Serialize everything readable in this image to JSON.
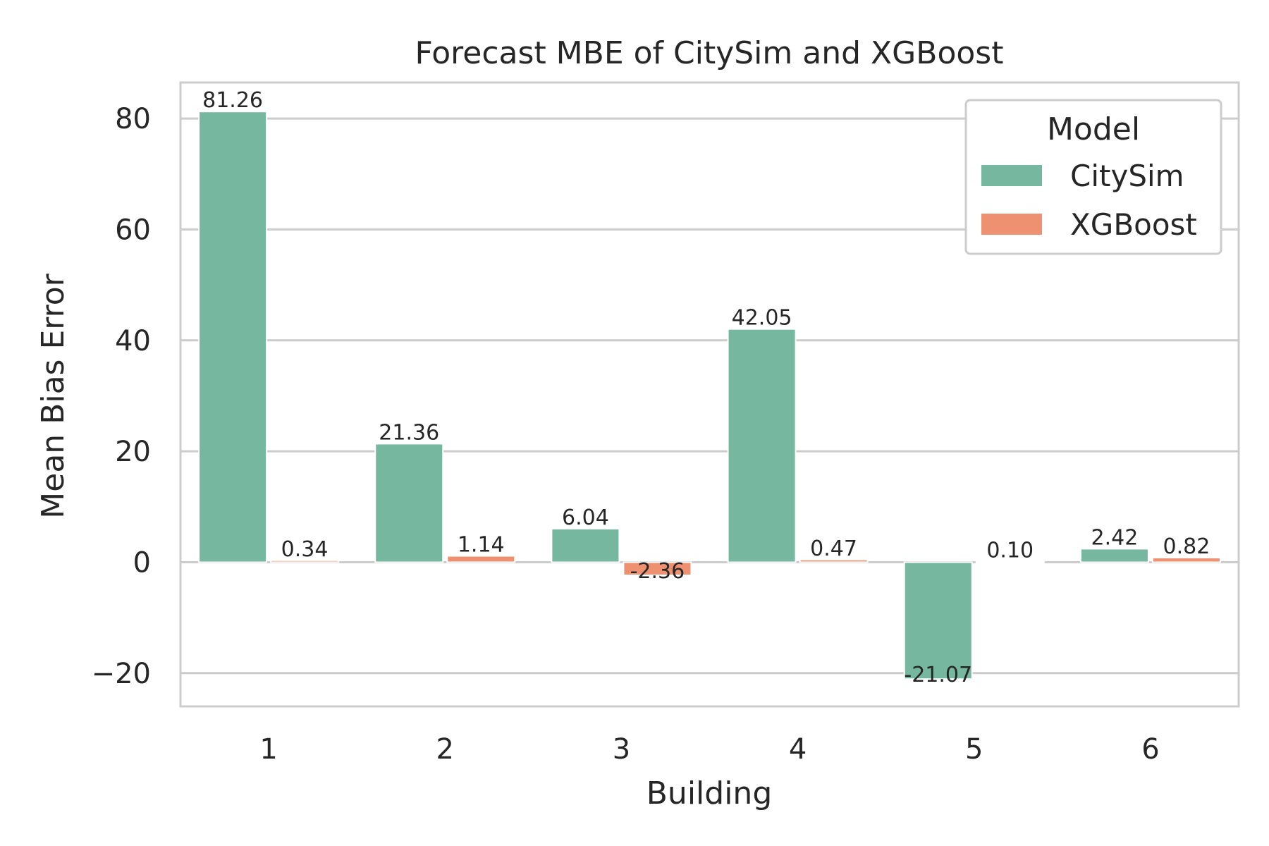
{
  "chart_data": {
    "type": "bar",
    "title": "Forecast MBE of CitySim and XGBoost",
    "xlabel": "Building",
    "ylabel": "Mean Bias Error",
    "categories": [
      "1",
      "2",
      "3",
      "4",
      "5",
      "6"
    ],
    "series": [
      {
        "name": "CitySim",
        "color": "#76b7a0",
        "values": [
          81.26,
          21.36,
          6.04,
          42.05,
          -21.07,
          2.42
        ],
        "labels": [
          "81.26",
          "21.36",
          "6.04",
          "42.05",
          "-21.07",
          "2.42"
        ]
      },
      {
        "name": "XGBoost",
        "color": "#ee9170",
        "values": [
          0.34,
          1.14,
          -2.36,
          0.47,
          0.1,
          0.82
        ],
        "labels": [
          "0.34",
          "1.14",
          "-2.36",
          "0.47",
          "0.10",
          "0.82"
        ]
      }
    ],
    "ylim": [
      -26,
      86.5
    ],
    "yticks": [
      -20,
      0,
      20,
      40,
      60,
      80
    ],
    "ytick_labels": [
      "−20",
      "0",
      "20",
      "40",
      "60",
      "80"
    ],
    "grid": true,
    "legend": {
      "title": "Model",
      "placement": "top-right"
    }
  }
}
